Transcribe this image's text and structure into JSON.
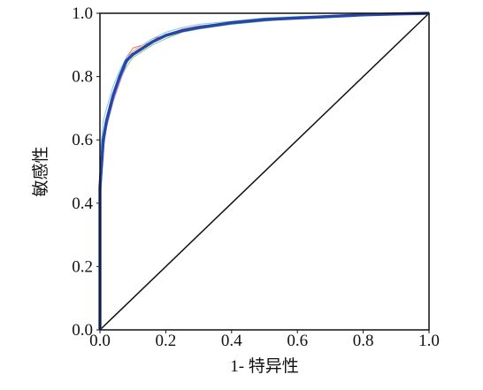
{
  "chart_data": {
    "type": "line",
    "x_label": "1- 特异性",
    "y_label": "敏感性",
    "x": [
      0,
      0,
      0.01,
      0.02,
      0.04,
      0.06,
      0.08,
      0.1,
      0.13,
      0.16,
      0.2,
      0.25,
      0.3,
      0.4,
      0.5,
      0.6,
      0.7,
      0.8,
      0.9,
      1
    ],
    "series": [
      {
        "color": "#e57373",
        "width": 1,
        "values": [
          0,
          0.38,
          0.58,
          0.65,
          0.73,
          0.8,
          0.86,
          0.89,
          0.9,
          0.92,
          0.93,
          0.95,
          0.96,
          0.97,
          0.98,
          0.985,
          0.99,
          0.995,
          0.998,
          1
        ]
      },
      {
        "color": "#81c784",
        "width": 1,
        "values": [
          0,
          0.5,
          0.62,
          0.67,
          0.74,
          0.79,
          0.83,
          0.86,
          0.88,
          0.9,
          0.92,
          0.94,
          0.95,
          0.965,
          0.975,
          0.985,
          0.99,
          0.995,
          0.998,
          1
        ]
      },
      {
        "color": "#ba8fd6",
        "width": 1,
        "values": [
          0,
          0.42,
          0.57,
          0.64,
          0.72,
          0.78,
          0.84,
          0.87,
          0.89,
          0.91,
          0.93,
          0.945,
          0.955,
          0.97,
          0.98,
          0.985,
          0.99,
          0.995,
          0.998,
          1
        ]
      },
      {
        "color": "#7fc8e8",
        "width": 1,
        "values": [
          0,
          0.55,
          0.66,
          0.7,
          0.77,
          0.82,
          0.86,
          0.88,
          0.9,
          0.92,
          0.94,
          0.955,
          0.965,
          0.975,
          0.985,
          0.99,
          0.993,
          0.996,
          0.999,
          1
        ]
      },
      {
        "color": "#f0b27a",
        "width": 1,
        "values": [
          0,
          0.4,
          0.59,
          0.65,
          0.73,
          0.8,
          0.85,
          0.88,
          0.9,
          0.91,
          0.93,
          0.94,
          0.955,
          0.97,
          0.98,
          0.986,
          0.99,
          0.995,
          0.998,
          1
        ]
      },
      {
        "color": "#2747a8",
        "width": 3.5,
        "values": [
          0,
          0.45,
          0.6,
          0.66,
          0.74,
          0.8,
          0.85,
          0.87,
          0.89,
          0.91,
          0.93,
          0.945,
          0.955,
          0.97,
          0.98,
          0.985,
          0.99,
          0.995,
          0.998,
          1
        ]
      }
    ],
    "reference": {
      "color": "#111111",
      "x": [
        0,
        1
      ],
      "values": [
        0,
        1
      ]
    },
    "xlim": [
      0,
      1
    ],
    "ylim": [
      0,
      1
    ],
    "xticks": [
      {
        "value": 0,
        "label": "0.0"
      },
      0.2,
      0.4,
      0.6,
      0.8,
      {
        "value": 1,
        "label": "1.0"
      }
    ],
    "yticks": [
      {
        "value": 0,
        "label": "0.0"
      },
      0.2,
      0.4,
      0.6,
      0.8,
      {
        "value": 1,
        "label": "1.0"
      }
    ]
  }
}
